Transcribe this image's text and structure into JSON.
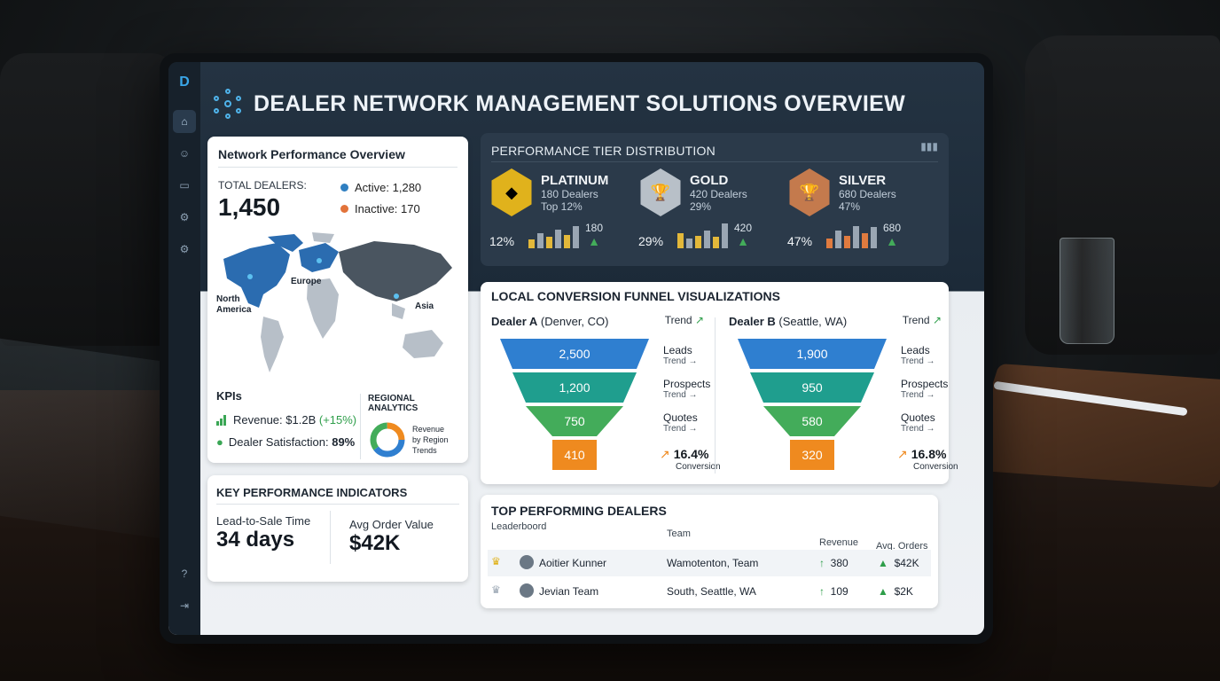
{
  "app": {
    "title": "DEALER NETWORK MANAGEMENT SOLUTIONS OVERVIEW",
    "logo_text": "D"
  },
  "sidebar": {
    "items": [
      {
        "icon": "home-icon",
        "glyph": "⌂",
        "active": true
      },
      {
        "icon": "users-icon",
        "glyph": "☺",
        "active": false
      },
      {
        "icon": "messages-icon",
        "glyph": "▭",
        "active": false
      },
      {
        "icon": "settings-icon",
        "glyph": "⚙",
        "active": false
      },
      {
        "icon": "gear-icon",
        "glyph": "⚙",
        "active": false
      }
    ],
    "bottom": [
      {
        "icon": "help-icon",
        "glyph": "?"
      },
      {
        "icon": "logout-icon",
        "glyph": "⇥"
      }
    ]
  },
  "network": {
    "title": "Network Performance Overview",
    "total_label": "TOTAL DEALERS:",
    "total_value": "1,450",
    "active": "Active: 1,280",
    "inactive": "Inactive: 170",
    "active_color": "#2f7fc1",
    "inactive_color": "#e2733a",
    "map_labels": {
      "north_america": "North",
      "north_america2": "America",
      "europe": "Europe",
      "asia": "Asia"
    },
    "kpis_title": "KPIs",
    "revenue_label": "Revenue: $1.2B",
    "revenue_change": "(+15%)",
    "satisfaction_label": "Dealer Satisfaction:",
    "satisfaction_value": "89%",
    "regional_title": "REGIONAL ANALYTICS",
    "regional_l1": "Revenue",
    "regional_l2": "by Region",
    "regional_l3": "Trends"
  },
  "key_kpi": {
    "title": "KEY PERFORMANCE INDICATORS",
    "lead_label": "Lead-to-Sale Time",
    "lead_value": "34 days",
    "aov_label": "Avg Order Value",
    "aov_value": "$42K"
  },
  "tiers": {
    "title": "PERFORMANCE TIER DISTRIBUTION",
    "items": [
      {
        "name": "PLATINUM",
        "dealers": "180 Dealers",
        "share": "Top 12%",
        "pct": "12%",
        "val": "180",
        "color": "#e0b21c",
        "glyph": "◆",
        "bar_colors": [
          "#e3b83a",
          "#9aa6b3"
        ],
        "bars": [
          0.35,
          0.6,
          0.45,
          0.75,
          0.55,
          0.9
        ]
      },
      {
        "name": "GOLD",
        "dealers": "420 Dealers",
        "share": "29%",
        "pct": "29%",
        "val": "420",
        "color": "#b8c0c8",
        "glyph": "🏆",
        "bar_colors": [
          "#e3b83a",
          "#9aa6b3"
        ],
        "bars": [
          0.6,
          0.4,
          0.5,
          0.7,
          0.45,
          1.0
        ]
      },
      {
        "name": "SILVER",
        "dealers": "680 Dealers",
        "share": "47%",
        "pct": "47%",
        "val": "680",
        "color": "#c47a4d",
        "glyph": "🏆",
        "bar_colors": [
          "#e07b3f",
          "#9aa6b3"
        ],
        "bars": [
          0.4,
          0.7,
          0.5,
          0.9,
          0.6,
          0.85
        ]
      }
    ]
  },
  "funnel": {
    "title": "LOCAL CONVERSION FUNNEL VISUALIZATIONS",
    "dealers": [
      {
        "bold": "Dealer A",
        "loc": "(Denver, CO)",
        "trend": "Trend",
        "values": [
          "2,500",
          "1,200",
          "750",
          "410"
        ],
        "conversion": "16.4%",
        "conv_label": "Conversion"
      },
      {
        "bold": "Dealer B",
        "loc": "(Seattle, WA)",
        "trend": "Trend",
        "values": [
          "1,900",
          "950",
          "580",
          "320"
        ],
        "conversion": "16.8%",
        "conv_label": "Conversion"
      }
    ],
    "stages": [
      "Leads",
      "Prospects",
      "Quotes"
    ],
    "stage_trend": "Trend →",
    "layer_colors": [
      "#2f7fd0",
      "#1f9e8e",
      "#43ac5a",
      "#ef8a1f"
    ]
  },
  "top_dealers": {
    "title": "TOP PERFORMING DEALERS",
    "subtitle": "Leaderboord",
    "headers": {
      "team": "Team",
      "revenue": "Revenue",
      "orders": "Avg. Orders"
    },
    "rows": [
      {
        "rank": "1",
        "name": "Aoitier Kunner",
        "team": "Wamotenton, Team",
        "revenue": "380",
        "orders": "$42K"
      },
      {
        "rank": "2",
        "name": "Jevian Team",
        "team": "South, Seattle, WA",
        "revenue": "109",
        "orders": "$2K"
      }
    ]
  }
}
